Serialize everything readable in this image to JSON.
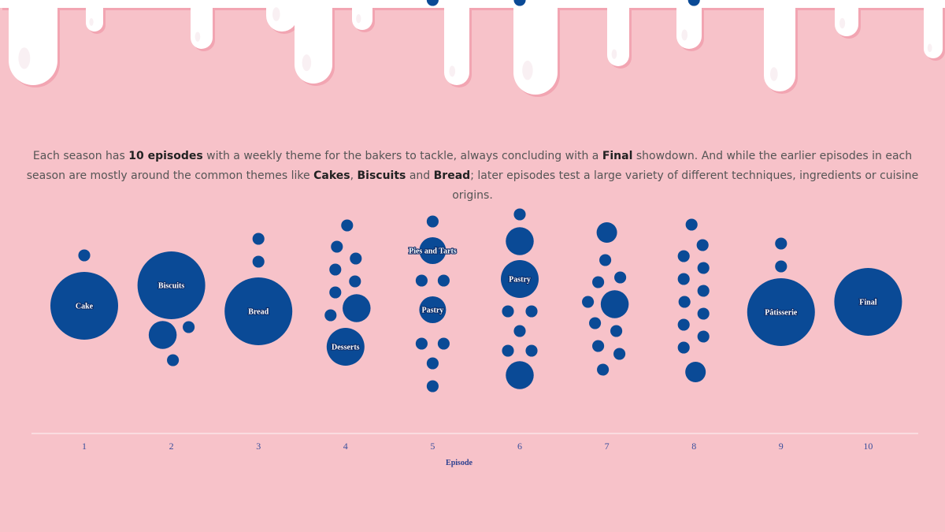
{
  "colors": {
    "background": "#f7c2c9",
    "bubble": "#0a4a96",
    "icing": "#ffffff",
    "axis": "#ffffff",
    "tick_text": "#3a4f9c"
  },
  "intro": {
    "p1": "Each season has ",
    "b1": "10 episodes",
    "p2": " with a weekly theme for the bakers to tackle, always concluding with a ",
    "b2": "Final",
    "p3": " showdown. And while the earlier episodes in each season are mostly around the common themes like ",
    "b3": "Cakes",
    "p4": ", ",
    "b4": "Biscuits",
    "p5": " and ",
    "b5": "Bread",
    "p6": "; later episodes test a large variety of different techniques, ingredients or cuisine origins."
  },
  "chart_data": {
    "type": "bubble-cluster",
    "xlabel": "Episode",
    "categories": [
      "1",
      "2",
      "3",
      "4",
      "5",
      "6",
      "7",
      "8",
      "9",
      "10"
    ],
    "episodes": [
      {
        "episode": "1",
        "labeled": [
          {
            "label": "Cake",
            "size": 10
          }
        ],
        "small_counts": [
          1
        ]
      },
      {
        "episode": "2",
        "labeled": [
          {
            "label": "Biscuits",
            "size": 7
          }
        ],
        "small_counts": [
          2,
          1,
          1
        ]
      },
      {
        "episode": "3",
        "labeled": [
          {
            "label": "Bread",
            "size": 9
          }
        ],
        "small_counts": [
          1,
          1
        ]
      },
      {
        "episode": "4",
        "labeled": [
          {
            "label": "Desserts",
            "size": 3
          }
        ],
        "small_counts": [
          2,
          1,
          1,
          1,
          1,
          1,
          1,
          1
        ]
      },
      {
        "episode": "5",
        "labeled": [
          {
            "label": "Pies and Tarts",
            "size": 2
          },
          {
            "label": "Pastry",
            "size": 2
          }
        ],
        "small_counts": [
          1,
          1,
          1,
          1,
          1,
          1,
          1,
          1
        ]
      },
      {
        "episode": "6",
        "labeled": [
          {
            "label": "Pastry",
            "size": 3
          }
        ],
        "small_counts": [
          2,
          2,
          1,
          1,
          1,
          1,
          1,
          1,
          1
        ]
      },
      {
        "episode": "7",
        "labeled": [
          {
            "label": "",
            "size": 2
          }
        ],
        "small_counts": [
          2,
          1,
          1,
          1,
          1,
          1,
          1,
          1,
          1,
          1
        ]
      },
      {
        "episode": "8",
        "labeled": [
          {
            "label": "",
            "size": 2
          }
        ],
        "small_counts": [
          1,
          1,
          1,
          1,
          1,
          1,
          1,
          1,
          1,
          1,
          1,
          1
        ]
      },
      {
        "episode": "9",
        "labeled": [
          {
            "label": "Pâtisserie",
            "size": 7
          }
        ],
        "small_counts": [
          1,
          1
        ]
      },
      {
        "episode": "10",
        "labeled": [
          {
            "label": "Final",
            "size": 9
          }
        ],
        "small_counts": []
      }
    ]
  }
}
